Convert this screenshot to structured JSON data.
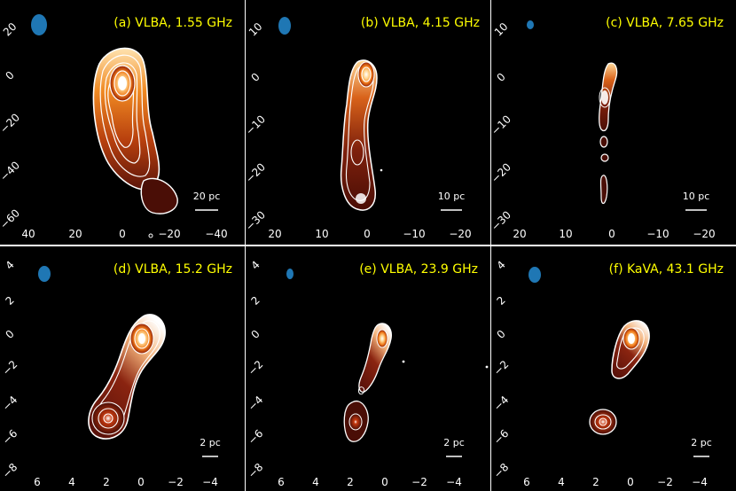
{
  "figure": {
    "panels": [
      {
        "label": "(a) VLBA, 1.55 GHz",
        "scalebar": "20 pc",
        "x_ticks": [
          "40",
          "20",
          "0",
          "−20",
          "−40"
        ],
        "y_ticks": [
          "20",
          "0",
          "−20",
          "−40",
          "−60"
        ],
        "beam_color": "#1f77b4"
      },
      {
        "label": "(b) VLBA, 4.15 GHz",
        "scalebar": "10 pc",
        "x_ticks": [
          "20",
          "10",
          "0",
          "−10",
          "−20"
        ],
        "y_ticks": [
          "10",
          "0",
          "−10",
          "−20",
          "−30"
        ],
        "beam_color": "#1f77b4"
      },
      {
        "label": "(c) VLBA, 7.65 GHz",
        "scalebar": "10 pc",
        "x_ticks": [
          "20",
          "10",
          "0",
          "−10",
          "−20"
        ],
        "y_ticks": [
          "10",
          "0",
          "−10",
          "−20",
          "−30"
        ],
        "beam_color": "#1f77b4"
      },
      {
        "label": "(d) VLBA, 15.2 GHz",
        "scalebar": "2 pc",
        "x_ticks": [
          "6",
          "4",
          "2",
          "0",
          "−2",
          "−4"
        ],
        "y_ticks": [
          "4",
          "2",
          "0",
          "−2",
          "−4",
          "−6",
          "−8"
        ],
        "beam_color": "#1f77b4"
      },
      {
        "label": "(e) VLBA, 23.9 GHz",
        "scalebar": "2 pc",
        "x_ticks": [
          "6",
          "4",
          "2",
          "0",
          "−2",
          "−4"
        ],
        "y_ticks": [
          "4",
          "2",
          "0",
          "−2",
          "−4",
          "−6",
          "−8"
        ],
        "beam_color": "#1f77b4"
      },
      {
        "label": "(f) KaVA, 43.1 GHz",
        "scalebar": "2 pc",
        "x_ticks": [
          "6",
          "4",
          "2",
          "0",
          "−2",
          "−4"
        ],
        "y_ticks": [
          "4",
          "2",
          "0",
          "−2",
          "−4",
          "−6",
          "−8"
        ],
        "beam_color": "#1f77b4"
      }
    ],
    "colors": {
      "background": "#000000",
      "label_text": "#ffff00",
      "contour": "#ffffff",
      "tick_text": "#ffffff"
    }
  }
}
